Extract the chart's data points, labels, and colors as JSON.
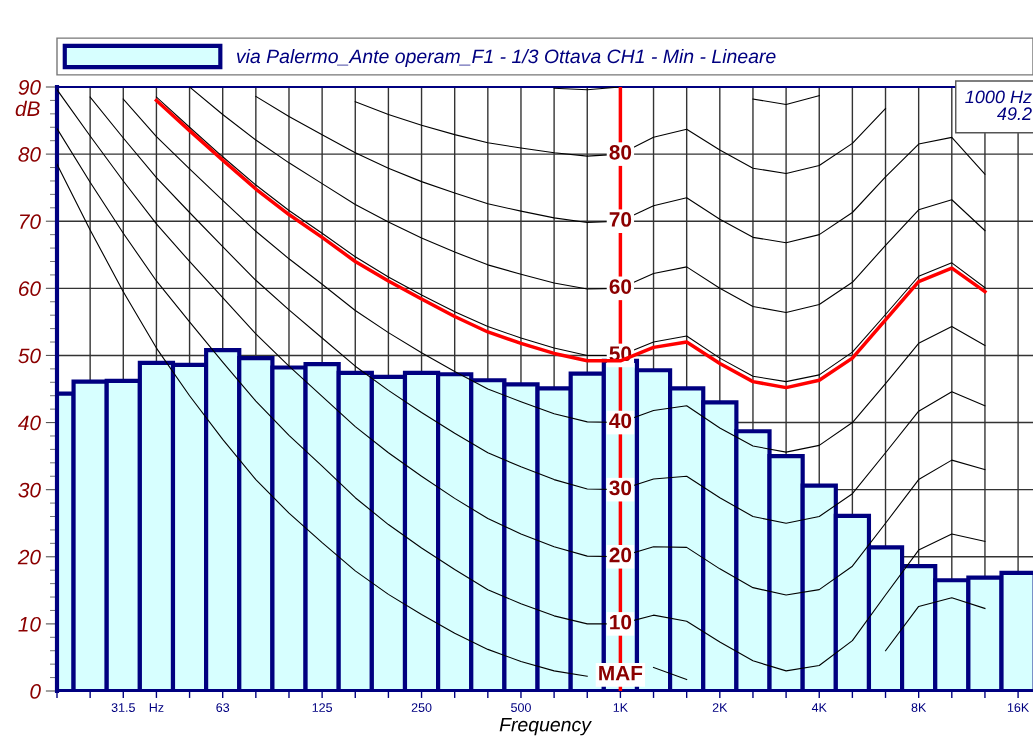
{
  "chart_data": {
    "type": "bar",
    "categories": [
      null,
      null,
      "31.5",
      "Hz",
      null,
      "63",
      null,
      null,
      "125",
      null,
      null,
      "250",
      null,
      null,
      "500",
      null,
      null,
      "1K",
      null,
      null,
      "2K",
      null,
      null,
      "4K",
      null,
      null,
      "8K",
      null,
      null,
      "16K"
    ],
    "xlabel": "Frequency",
    "ylabel": "dB",
    "ylim": [
      0,
      90
    ],
    "yticks": [
      0,
      10,
      20,
      30,
      40,
      50,
      60,
      70,
      80,
      90
    ],
    "grid": true,
    "legend": "top",
    "series": [
      {
        "name": "via Palermo_Ante operam_F1 - 1/3 Ottava CH1 - Min - Lineare",
        "color": "#d7ffff",
        "values": [
          44.3,
          46.1,
          46.2,
          48.9,
          48.6,
          50.8,
          49.6,
          48.2,
          48.7,
          47.4,
          46.8,
          47.4,
          47.2,
          46.3,
          45.7,
          45.1,
          47.3,
          49.2,
          47.8,
          45.1,
          43.0,
          38.7,
          35.0,
          30.6,
          26.1,
          21.4,
          18.6,
          16.5,
          16.9,
          17.6
        ]
      },
      {
        "type": "line",
        "color": "#000000",
        "values": [
          78.5,
          68.7,
          59.5,
          51.1,
          44.0,
          37.5,
          31.5,
          26.5,
          22.1,
          17.9,
          14.4,
          11.4,
          8.6,
          6.2,
          4.4,
          3.0,
          2.2,
          null,
          3.5,
          1.7,
          null,
          null,
          null,
          null,
          null,
          6.0,
          12.6,
          13.9,
          12.3,
          null
        ]
      },
      {
        "type": "line",
        "color": "#000000",
        "values": [
          83.8,
          75.8,
          68.2,
          61.1,
          55.0,
          49.0,
          43.2,
          38.1,
          33.5,
          28.8,
          24.8,
          21.3,
          18.1,
          15.1,
          13.0,
          11.2,
          10.0,
          10.0,
          11.3,
          10.4,
          7.3,
          4.5,
          3.0,
          3.8,
          7.5,
          14.3,
          21.0,
          23.4,
          22.3,
          null
        ]
      },
      {
        "type": "line",
        "color": "#000000",
        "values": [
          89.6,
          82.7,
          76.0,
          69.6,
          64.0,
          58.6,
          53.2,
          48.4,
          43.9,
          39.4,
          35.5,
          32.0,
          28.7,
          25.7,
          23.4,
          21.5,
          20.1,
          20.0,
          21.5,
          21.4,
          18.2,
          15.4,
          14.3,
          15.1,
          18.6,
          25.0,
          31.5,
          34.4,
          33.0,
          null
        ]
      },
      {
        "type": "line",
        "color": "#000000",
        "values": [
          null,
          88.5,
          82.4,
          76.5,
          71.3,
          66.2,
          61.2,
          56.8,
          52.6,
          48.4,
          44.8,
          41.5,
          38.4,
          35.5,
          33.4,
          31.5,
          30.1,
          30.0,
          31.6,
          32.0,
          28.8,
          26.0,
          25.0,
          26.0,
          29.4,
          35.5,
          41.7,
          44.6,
          42.5,
          null
        ]
      },
      {
        "type": "line",
        "color": "#000000",
        "values": [
          null,
          null,
          88.2,
          82.6,
          77.8,
          73.1,
          68.5,
          64.4,
          60.6,
          56.7,
          53.4,
          50.4,
          47.6,
          45.0,
          43.1,
          41.3,
          40.1,
          40.0,
          41.8,
          42.5,
          39.2,
          36.5,
          35.6,
          36.6,
          40.0,
          45.8,
          51.8,
          54.3,
          51.5,
          null
        ]
      },
      {
        "type": "line",
        "color": "#000000",
        "values": [
          null,
          null,
          null,
          88.5,
          84.0,
          79.6,
          75.4,
          71.6,
          68.2,
          64.7,
          61.7,
          59.0,
          56.5,
          54.3,
          52.6,
          51.1,
          50.0,
          50.0,
          52.0,
          52.9,
          49.6,
          46.9,
          46.1,
          47.1,
          50.5,
          56.1,
          61.8,
          63.8,
          60.1,
          null
        ]
      },
      {
        "type": "line",
        "color": "#000000",
        "values": [
          null,
          null,
          null,
          null,
          90.0,
          85.9,
          82.1,
          78.7,
          75.6,
          72.5,
          69.9,
          67.5,
          65.4,
          63.5,
          62.1,
          60.8,
          59.9,
          60.0,
          62.2,
          63.2,
          60.0,
          57.3,
          56.4,
          57.6,
          60.9,
          66.4,
          71.7,
          73.2,
          68.6,
          null
        ]
      },
      {
        "type": "line",
        "color": "#000000",
        "values": [
          null,
          null,
          null,
          null,
          null,
          null,
          88.6,
          85.6,
          82.9,
          80.2,
          77.9,
          75.9,
          74.2,
          72.6,
          71.5,
          70.5,
          69.8,
          70.0,
          72.3,
          73.5,
          70.3,
          67.6,
          66.8,
          68.0,
          71.3,
          76.6,
          81.5,
          82.5,
          77.0,
          null
        ]
      },
      {
        "type": "line",
        "color": "#000000",
        "values": [
          null,
          null,
          null,
          null,
          null,
          null,
          null,
          null,
          null,
          87.8,
          85.9,
          84.3,
          82.9,
          81.7,
          80.9,
          80.2,
          79.7,
          80.0,
          82.5,
          83.7,
          80.6,
          77.9,
          77.1,
          78.3,
          81.6,
          86.8,
          null,
          null,
          null,
          null
        ]
      },
      {
        "type": "line",
        "color": "#000000",
        "values": [
          null,
          null,
          null,
          null,
          null,
          null,
          null,
          null,
          null,
          null,
          null,
          null,
          null,
          null,
          null,
          89.8,
          89.6,
          90.0,
          null,
          null,
          null,
          88.2,
          87.4,
          88.7,
          null,
          null,
          null,
          null,
          null,
          null
        ]
      },
      {
        "type": "line",
        "color": "#ff0000",
        "values": [
          null,
          null,
          null,
          88.0,
          83.5,
          79.1,
          74.8,
          71.0,
          67.6,
          64.0,
          61.1,
          58.4,
          55.8,
          53.5,
          51.8,
          50.3,
          49.2,
          49.2,
          51.2,
          52.0,
          48.8,
          46.1,
          45.2,
          46.3,
          49.6,
          55.3,
          61.0,
          63.0,
          59.5,
          null
        ]
      }
    ],
    "ref_lines": [
      {
        "axis": "x",
        "value": "1K",
        "color": "#ff0000"
      }
    ],
    "annotations": [
      {
        "text": "80",
        "x": "1K",
        "y": 80
      },
      {
        "text": "70",
        "x": "1K",
        "y": 70
      },
      {
        "text": "60",
        "x": "1K",
        "y": 60
      },
      {
        "text": "50",
        "x": "1K",
        "y": 50
      },
      {
        "text": "40",
        "x": "1K",
        "y": 40
      },
      {
        "text": "30",
        "x": "1K",
        "y": 30
      },
      {
        "text": "20",
        "x": "1K",
        "y": 20
      },
      {
        "text": "10",
        "x": "1K",
        "y": 10
      },
      {
        "text": "MAF",
        "x": "1K",
        "y": 2.4
      },
      "1000 Hz\n49.2"
    ]
  }
}
